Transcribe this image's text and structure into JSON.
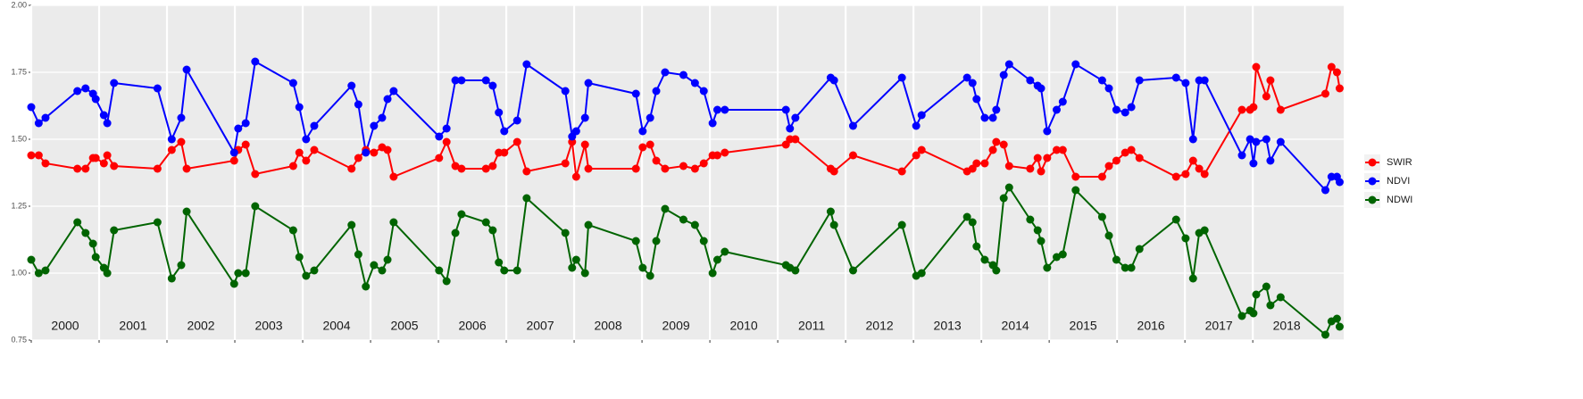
{
  "chart_data": {
    "type": "line",
    "x": [
      2000.0,
      2000.11,
      2000.21,
      2000.68,
      2000.8,
      2000.91,
      2000.95,
      2001.07,
      2001.12,
      2001.22,
      2001.86,
      2002.07,
      2002.21,
      2002.29,
      2002.99,
      2003.05,
      2003.16,
      2003.3,
      2003.86,
      2003.95,
      2004.05,
      2004.17,
      2004.72,
      2004.82,
      2004.93,
      2005.05,
      2005.17,
      2005.25,
      2005.34,
      2006.01,
      2006.12,
      2006.25,
      2006.34,
      2006.7,
      2006.8,
      2006.89,
      2006.97,
      2007.16,
      2007.3,
      2007.87,
      2007.97,
      2008.03,
      2008.16,
      2008.21,
      2008.91,
      2009.01,
      2009.12,
      2009.21,
      2009.34,
      2009.61,
      2009.78,
      2009.91,
      2010.04,
      2010.11,
      2010.22,
      2011.12,
      2011.18,
      2011.26,
      2011.78,
      2011.83,
      2012.11,
      2012.83,
      2013.04,
      2013.12,
      2013.79,
      2013.87,
      2013.93,
      2014.05,
      2014.17,
      2014.22,
      2014.33,
      2014.41,
      2014.72,
      2014.83,
      2014.88,
      2014.97,
      2015.11,
      2015.2,
      2015.39,
      2015.78,
      2015.88,
      2015.99,
      2016.12,
      2016.21,
      2016.33,
      2016.87,
      2017.01,
      2017.12,
      2017.21,
      2017.29,
      2017.84,
      2017.96,
      2018.01,
      2018.05,
      2018.2,
      2018.26,
      2018.41,
      2019.07,
      2019.16,
      2019.24,
      2019.28
    ],
    "series": [
      {
        "name": "SWIR",
        "color": "#ff0000",
        "values": [
          1.44,
          1.44,
          1.41,
          1.39,
          1.39,
          1.43,
          1.43,
          1.41,
          1.44,
          1.4,
          1.39,
          1.46,
          1.49,
          1.39,
          1.42,
          1.46,
          1.48,
          1.37,
          1.4,
          1.45,
          1.42,
          1.46,
          1.39,
          1.43,
          1.46,
          1.45,
          1.47,
          1.46,
          1.36,
          1.43,
          1.49,
          1.4,
          1.39,
          1.39,
          1.4,
          1.45,
          1.45,
          1.49,
          1.38,
          1.41,
          1.49,
          1.36,
          1.48,
          1.39,
          1.39,
          1.47,
          1.48,
          1.42,
          1.39,
          1.4,
          1.39,
          1.41,
          1.44,
          1.44,
          1.45,
          1.48,
          1.5,
          1.5,
          1.39,
          1.38,
          1.44,
          1.38,
          1.44,
          1.46,
          1.38,
          1.39,
          1.41,
          1.41,
          1.46,
          1.49,
          1.48,
          1.4,
          1.39,
          1.43,
          1.38,
          1.43,
          1.46,
          1.46,
          1.36,
          1.36,
          1.4,
          1.42,
          1.45,
          1.46,
          1.43,
          1.36,
          1.37,
          1.42,
          1.39,
          1.37,
          1.61,
          1.61,
          1.62,
          1.77,
          1.66,
          1.72,
          1.61,
          1.67,
          1.77,
          1.75,
          1.69
        ]
      },
      {
        "name": "NDVI",
        "color": "#0000ff",
        "values": [
          1.62,
          1.56,
          1.58,
          1.68,
          1.69,
          1.67,
          1.65,
          1.59,
          1.56,
          1.71,
          1.69,
          1.5,
          1.58,
          1.76,
          1.45,
          1.54,
          1.56,
          1.79,
          1.71,
          1.62,
          1.5,
          1.55,
          1.7,
          1.63,
          1.45,
          1.55,
          1.58,
          1.65,
          1.68,
          1.51,
          1.54,
          1.72,
          1.72,
          1.72,
          1.7,
          1.6,
          1.53,
          1.57,
          1.78,
          1.68,
          1.51,
          1.53,
          1.58,
          1.71,
          1.67,
          1.53,
          1.58,
          1.68,
          1.75,
          1.74,
          1.71,
          1.68,
          1.56,
          1.61,
          1.61,
          1.61,
          1.54,
          1.58,
          1.73,
          1.72,
          1.55,
          1.73,
          1.55,
          1.59,
          1.73,
          1.71,
          1.65,
          1.58,
          1.58,
          1.61,
          1.74,
          1.78,
          1.72,
          1.7,
          1.69,
          1.53,
          1.61,
          1.64,
          1.78,
          1.72,
          1.69,
          1.61,
          1.6,
          1.62,
          1.72,
          1.73,
          1.71,
          1.5,
          1.72,
          1.72,
          1.44,
          1.5,
          1.41,
          1.49,
          1.5,
          1.42,
          1.49,
          1.31,
          1.36,
          1.36,
          1.34
        ]
      },
      {
        "name": "NDWI",
        "color": "#006400",
        "values": [
          1.05,
          1.0,
          1.01,
          1.19,
          1.15,
          1.11,
          1.06,
          1.02,
          1.0,
          1.16,
          1.19,
          0.98,
          1.03,
          1.23,
          0.96,
          1.0,
          1.0,
          1.25,
          1.16,
          1.06,
          0.99,
          1.01,
          1.18,
          1.07,
          0.95,
          1.03,
          1.01,
          1.05,
          1.19,
          1.01,
          0.97,
          1.15,
          1.22,
          1.19,
          1.16,
          1.04,
          1.01,
          1.01,
          1.28,
          1.15,
          1.02,
          1.05,
          1.0,
          1.18,
          1.12,
          1.02,
          0.99,
          1.12,
          1.24,
          1.2,
          1.18,
          1.12,
          1.0,
          1.05,
          1.08,
          1.03,
          1.02,
          1.01,
          1.23,
          1.18,
          1.01,
          1.18,
          0.99,
          1.0,
          1.21,
          1.19,
          1.1,
          1.05,
          1.03,
          1.01,
          1.28,
          1.32,
          1.2,
          1.16,
          1.12,
          1.02,
          1.06,
          1.07,
          1.31,
          1.21,
          1.14,
          1.05,
          1.02,
          1.02,
          1.09,
          1.2,
          1.13,
          0.98,
          1.15,
          1.16,
          0.84,
          0.86,
          0.85,
          0.92,
          0.95,
          0.88,
          0.91,
          0.77,
          0.82,
          0.83,
          0.8
        ]
      }
    ],
    "xlim": [
      2000,
      2019.34
    ],
    "xticks": [
      2000,
      2001,
      2002,
      2003,
      2004,
      2005,
      2006,
      2007,
      2008,
      2009,
      2010,
      2011,
      2012,
      2013,
      2014,
      2015,
      2016,
      2017,
      2018
    ],
    "ylim": [
      0.75,
      2.0
    ],
    "yticks": [
      {
        "value": 0.75,
        "label": "0.75"
      },
      {
        "value": 1.0,
        "label": "1.00"
      },
      {
        "value": 1.25,
        "label": "1.25"
      },
      {
        "value": 1.5,
        "label": "1.50"
      },
      {
        "value": 1.75,
        "label": "1.75"
      },
      {
        "value": 2.0,
        "label": "2.00"
      }
    ],
    "grid": true,
    "legend_position": "right"
  }
}
